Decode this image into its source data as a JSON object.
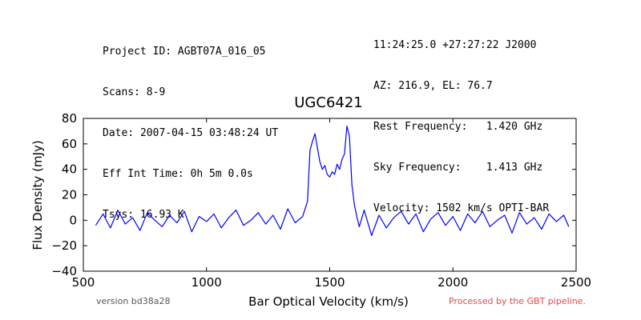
{
  "header": {
    "left": [
      "Project ID: AGBT07A_016_05",
      "Scans: 8-9",
      "Date: 2007-04-15 03:48:24 UT",
      "Eff Int Time: 0h 5m 0.0s",
      "Tsys: 16.93 K"
    ],
    "right": [
      "11:24:25.0 +27:27:22 J2000",
      "AZ: 216.9, EL: 76.7",
      "Rest Frequency:   1.420 GHz",
      "Sky Frequency:    1.413 GHz",
      "Velocity: 1502 km/s OPTI-BAR"
    ]
  },
  "footer": {
    "version": "version bd38a28",
    "processed": "Processed by the GBT pipeline."
  },
  "colors": {
    "series": "#0000ff",
    "processed_text": "#e8474a"
  },
  "chart_data": {
    "type": "line",
    "title": "UGC6421",
    "xlabel": "Bar Optical Velocity (km/s)",
    "ylabel": "Flux Density (mJy)",
    "xlim": [
      500,
      2500
    ],
    "ylim": [
      -40,
      80
    ],
    "xticks": [
      500,
      1000,
      1500,
      2000,
      2500
    ],
    "yticks": [
      -40,
      -20,
      0,
      20,
      40,
      60,
      80
    ],
    "grid": false,
    "series": [
      {
        "x": [
          550,
          580,
          610,
          640,
          670,
          700,
          730,
          760,
          790,
          820,
          850,
          880,
          910,
          940,
          970,
          1000,
          1030,
          1060,
          1090,
          1120,
          1150,
          1180,
          1210,
          1240,
          1270,
          1300,
          1330,
          1360,
          1390,
          1410,
          1420,
          1430,
          1440,
          1450,
          1460,
          1470,
          1480,
          1490,
          1500,
          1510,
          1520,
          1530,
          1540,
          1550,
          1560,
          1570,
          1580,
          1590,
          1600,
          1610,
          1620,
          1640,
          1670,
          1700,
          1730,
          1760,
          1790,
          1820,
          1850,
          1880,
          1910,
          1940,
          1970,
          2000,
          2030,
          2060,
          2090,
          2120,
          2150,
          2180,
          2210,
          2240,
          2270,
          2300,
          2330,
          2360,
          2390,
          2420,
          2450,
          2470
        ],
        "y": [
          -4,
          5,
          -6,
          8,
          -3,
          2,
          -8,
          6,
          0,
          -5,
          4,
          -2,
          7,
          -9,
          3,
          -1,
          5,
          -6,
          2,
          8,
          -4,
          0,
          6,
          -3,
          4,
          -7,
          9,
          -2,
          3,
          15,
          55,
          62,
          68,
          57,
          46,
          40,
          43,
          36,
          34,
          38,
          36,
          44,
          40,
          48,
          52,
          74,
          66,
          28,
          12,
          3,
          -5,
          8,
          -12,
          4,
          -6,
          2,
          7,
          -3,
          5,
          -9,
          1,
          6,
          -4,
          3,
          -8,
          5,
          -2,
          7,
          -5,
          0,
          4,
          -10,
          6,
          -3,
          2,
          -7,
          5,
          -1,
          4,
          -5
        ]
      }
    ]
  }
}
